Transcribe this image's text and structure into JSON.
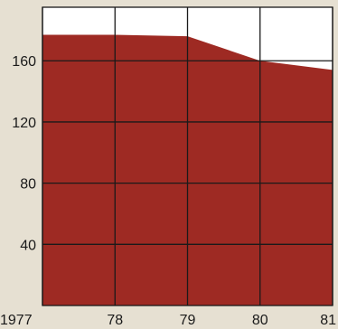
{
  "chart_data": {
    "type": "area",
    "x": [
      1977,
      1978,
      1979,
      1980,
      1981
    ],
    "xtick_labels": [
      "1977",
      "78",
      "79",
      "80",
      "81"
    ],
    "values": [
      177,
      177,
      176,
      160,
      154
    ],
    "yticks": [
      40,
      80,
      120,
      160
    ],
    "ytick_labels": [
      "40",
      "80",
      "120",
      "160"
    ],
    "xlim": [
      1977,
      1981
    ],
    "ylim": [
      0,
      195
    ],
    "grid": true,
    "title": "",
    "xlabel": "",
    "ylabel": "",
    "colors": {
      "fill": "#9e2a23",
      "plot_bg": "#ffffff",
      "page_bg": "#e6e0d2",
      "grid": "#1a1a1a"
    }
  }
}
